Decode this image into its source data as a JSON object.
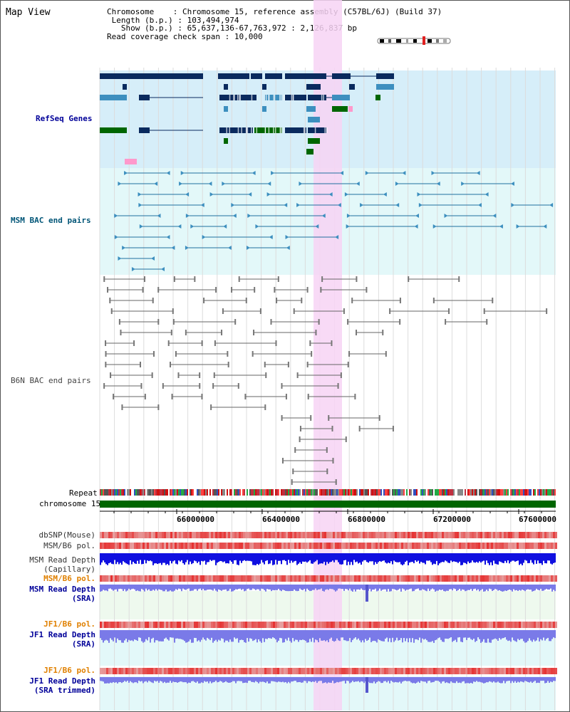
{
  "title": "Map View",
  "info": {
    "chromosome_key": "Chromosome",
    "chromosome_val": "Chromosome 15, reference assembly (C57BL/6J) (Build 37)",
    "length_key": "Length (b.p.)",
    "length_val": "103,494,974",
    "show_key": "Show (b.p.)",
    "show_val": "65,637,136-67,763,972 : 2,126,837 bp",
    "span_key": "Read coverage check span",
    "span_val": "10,000"
  },
  "tracks": {
    "refseq": {
      "label": "RefSeq Genes",
      "color": "#000099"
    },
    "msm_bac": {
      "label": "MSM BAC end pairs",
      "color": "#005577"
    },
    "b6n_bac": {
      "label": "B6N BAC end pairs",
      "color": "#444444"
    },
    "repeat": {
      "label": "Repeat"
    },
    "chromosome": {
      "label": "chromosome 15"
    }
  },
  "ruler": {
    "ticks": [
      "66000000",
      "66400000",
      "66800000",
      "67200000",
      "67600000"
    ]
  },
  "lower_tracks": [
    {
      "label": "dbSNP(Mouse)",
      "color": "#333333"
    },
    {
      "label": "MSM/B6 pol.",
      "color": "#333333"
    },
    {
      "label": "MSM Read Depth\n(Capillary)",
      "color": "#333333"
    },
    {
      "label": "MSM/B6 pol.",
      "color": "#e08000"
    },
    {
      "label": "MSM Read Depth\n(SRA)",
      "color": "#000099"
    },
    {
      "label": "JF1/B6 pol.",
      "color": "#e08000"
    },
    {
      "label": "JF1 Read Depth\n(SRA)",
      "color": "#000099"
    },
    {
      "label": "JF1/B6 pol.",
      "color": "#e08000"
    },
    {
      "label": "JF1 Read Depth\n(SRA trimmed)",
      "color": "#000099"
    }
  ],
  "colors": {
    "highlight": "#f7d4f4",
    "refseq_bg": "#d6eef9",
    "msm_bg": "#e3f8f9",
    "gene_dark": "#0a2a5e",
    "gene_mid": "#3d8fbf",
    "gene_green": "#006600",
    "capillary_depth": "#1010e0",
    "sra_depth": "#7a7ae8",
    "snp_red": "#e03030"
  }
}
